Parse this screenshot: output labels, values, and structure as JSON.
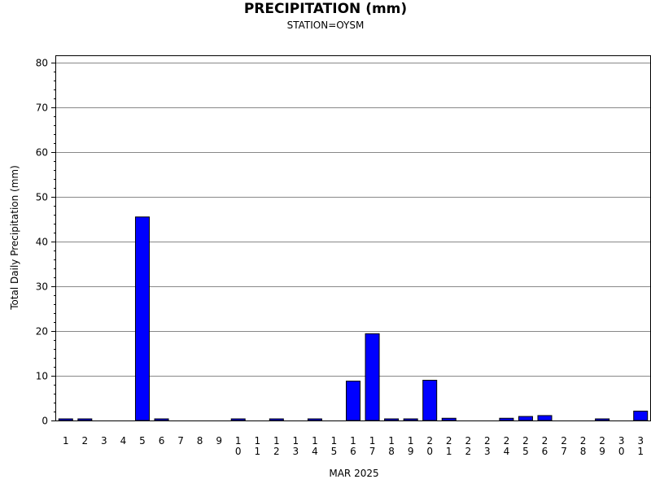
{
  "chart_data": {
    "type": "bar",
    "title": "PRECIPITATION (mm)",
    "subtitle": "STATION=OYSM",
    "xlabel": "MAR 2025",
    "ylabel": "Total Daily Precipitation (mm)",
    "ylim": [
      0,
      80
    ],
    "yticks": [
      0,
      10,
      20,
      30,
      40,
      50,
      60,
      70,
      80
    ],
    "grid": true,
    "bar_color": "#0000ff",
    "categories": [
      "1",
      "2",
      "3",
      "4",
      "5",
      "6",
      "7",
      "8",
      "9",
      "10",
      "11",
      "12",
      "13",
      "14",
      "15",
      "16",
      "17",
      "18",
      "19",
      "20",
      "21",
      "22",
      "23",
      "24",
      "25",
      "26",
      "27",
      "28",
      "29",
      "30",
      "31"
    ],
    "values": [
      0.1,
      0.3,
      0,
      0,
      45.5,
      0.1,
      0,
      0,
      0,
      0.1,
      0,
      0.1,
      0,
      0.1,
      0,
      8.8,
      19.4,
      0.1,
      0.1,
      9.0,
      0.5,
      0,
      0,
      0.5,
      0.9,
      1.1,
      0,
      0,
      0.1,
      0,
      2.1
    ]
  }
}
